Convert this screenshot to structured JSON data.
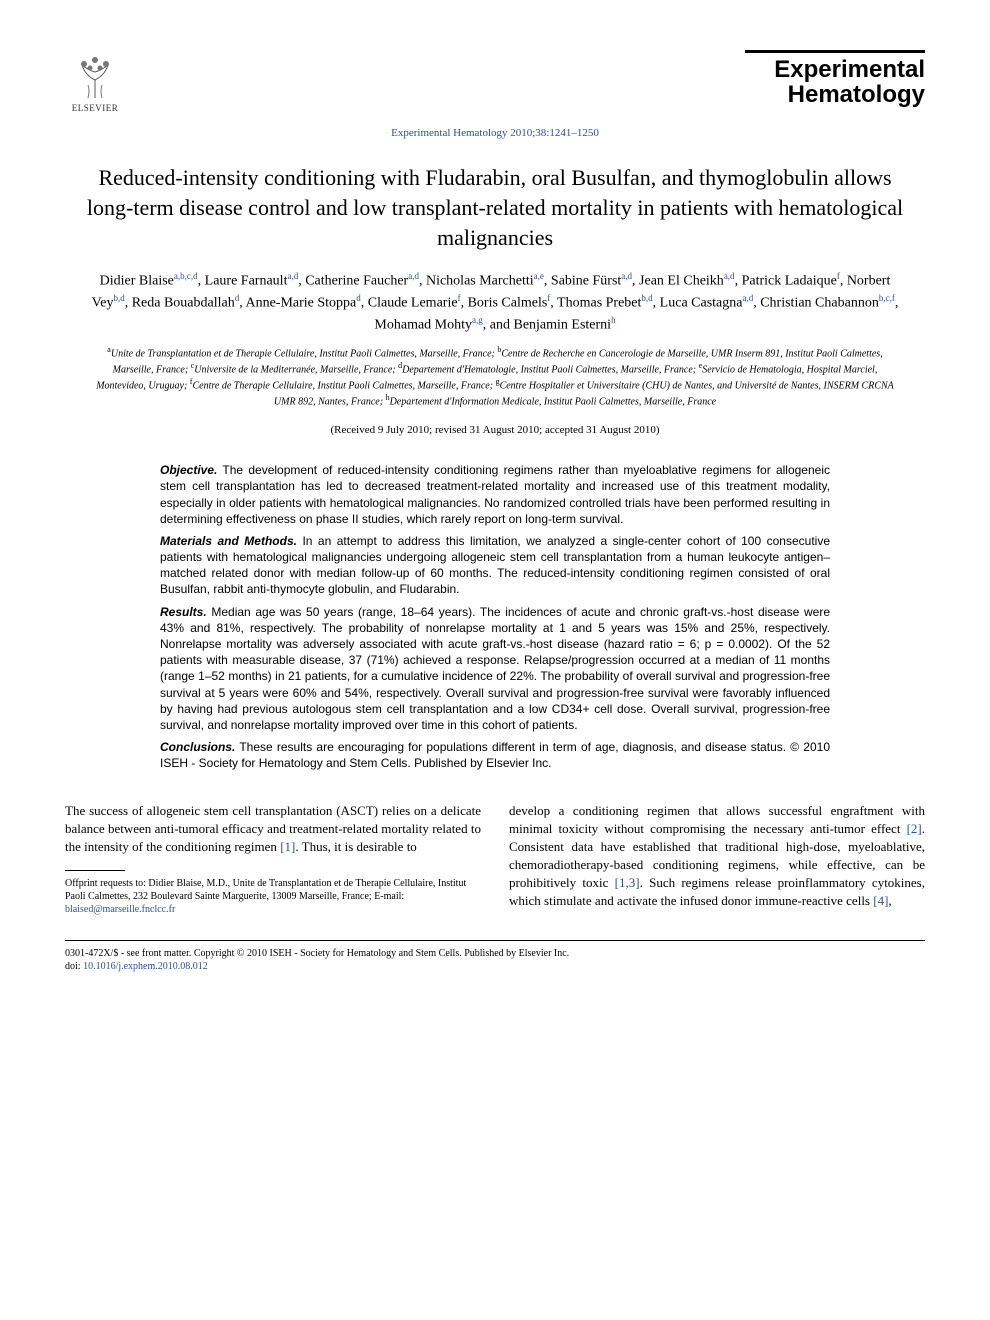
{
  "publisher": {
    "name": "ELSEVIER"
  },
  "journal": {
    "name_line1": "Experimental",
    "name_line2": "Hematology",
    "reference": "Experimental Hematology 2010;38:1241–1250"
  },
  "article": {
    "title": "Reduced-intensity conditioning with Fludarabin, oral Busulfan, and thymoglobulin allows long-term disease control and low transplant-related mortality in patients with hematological malignancies"
  },
  "authors_html": "Didier Blaise<sup>a,b,c,d</sup>, Laure Farnault<sup>a,d</sup>, Catherine Faucher<sup>a,d</sup>, Nicholas Marchetti<sup>a,e</sup>, Sabine Fürst<sup>a,d</sup>, Jean El Cheikh<sup>a,d</sup>, Patrick Ladaique<sup>f</sup>, Norbert Vey<sup>b,d</sup>, Reda Bouabdallah<sup>d</sup>, Anne-Marie Stoppa<sup>d</sup>, Claude Lemarie<sup>f</sup>, Boris Calmels<sup>f</sup>, Thomas Prebet<sup>b,d</sup>, Luca Castagna<sup>a,d</sup>, Christian Chabannon<sup>b,c,f</sup>, Mohamad Mohty<sup>a,g</sup>, and Benjamin Esterni<sup>h</sup>",
  "affiliations_html": "<sup>a</sup>Unite de Transplantation et de Therapie Cellulaire, Institut Paoli Calmettes, Marseille, France; <sup>b</sup>Centre de Recherche en Cancerologie de Marseille, UMR Inserm 891, Institut Paoli Calmettes, Marseille, France; <sup>c</sup>Universite de la Mediterranée, Marseille, France; <sup>d</sup>Departement d'Hematologie, Institut Paoli Calmettes, Marseille, France; <sup>e</sup>Servicio de Hematologia, Hospital Marciel, Montevideo, Uruguay; <sup>f</sup>Centre de Therapie Cellulaire, Institut Paoli Calmettes, Marseille, France; <sup>g</sup>Centre Hospitalier et Universitaire (CHU) de Nantes, and Université de Nantes, INSERM CRCNA UMR 892, Nantes, France; <sup>h</sup>Departement d'Information Medicale, Institut Paoli Calmettes, Marseille, France",
  "dates": "(Received 9 July 2010; revised 31 August 2010; accepted 31 August 2010)",
  "abstract": {
    "objective": {
      "label": "Objective.",
      "text": "The development of reduced-intensity conditioning regimens rather than myeloablative regimens for allogeneic stem cell transplantation has led to decreased treatment-related mortality and increased use of this treatment modality, especially in older patients with hematological malignancies. No randomized controlled trials have been performed resulting in determining effectiveness on phase II studies, which rarely report on long-term survival."
    },
    "methods": {
      "label": "Materials and Methods.",
      "text": "In an attempt to address this limitation, we analyzed a single-center cohort of 100 consecutive patients with hematological malignancies undergoing allogeneic stem cell transplantation from a human leukocyte antigen–matched related donor with median follow-up of 60 months. The reduced-intensity conditioning regimen consisted of oral Busulfan, rabbit anti-thymocyte globulin, and Fludarabin."
    },
    "results": {
      "label": "Results.",
      "text": "Median age was 50 years (range, 18–64 years). The incidences of acute and chronic graft-vs.-host disease were 43% and 81%, respectively. The probability of nonrelapse mortality at 1 and 5 years was 15% and 25%, respectively. Nonrelapse mortality was adversely associated with acute graft-vs.-host disease (hazard ratio = 6; p = 0.0002). Of the 52 patients with measurable disease, 37 (71%) achieved a response. Relapse/progression occurred at a median of 11 months (range 1–52 months) in 21 patients, for a cumulative incidence of 22%. The probability of overall survival and progression-free survival at 5 years were 60% and 54%, respectively. Overall survival and progression-free survival were favorably influenced by having had previous autologous stem cell transplantation and a low CD34+ cell dose. Overall survival, progression-free survival, and nonrelapse mortality improved over time in this cohort of patients."
    },
    "conclusions": {
      "label": "Conclusions.",
      "text": "These results are encouraging for populations different in term of age, diagnosis, and disease status.  © 2010 ISEH - Society for Hematology and Stem Cells.  Published by Elsevier Inc."
    }
  },
  "body": {
    "col1_html": "The success of allogeneic stem cell transplantation (ASCT) relies on a delicate balance between anti-tumoral efficacy and treatment-related mortality related to the intensity of the conditioning regimen <span class=\"ref-link\">[1]</span>. Thus, it is desirable to",
    "col2_html": "develop a conditioning regimen that allows successful engraftment with minimal toxicity without compromising the necessary anti-tumor effect <span class=\"ref-link\">[2]</span>. Consistent data have established that traditional high-dose, myeloablative, chemoradiotherapy-based conditioning regimens, while effective, can be prohibitively toxic <span class=\"ref-link\">[1,3]</span>. Such regimens release proinflammatory cytokines, which stimulate and activate the infused donor immune-reactive cells <span class=\"ref-link\">[4]</span>,"
  },
  "footnote": {
    "text_html": "Offprint requests to: Didier Blaise, M.D., Unite de Transplantation et de Therapie Cellulaire, Institut Paoli Calmettes, 232 Boulevard Sainte Marguerite, 13009 Marseille, France; E-mail: <span class=\"email\">blaised@marseille.fnclcc.fr</span>"
  },
  "copyright": {
    "line1": "0301-472X/$ - see front matter. Copyright © 2010 ISEH - Society for Hematology and Stem Cells. Published by Elsevier Inc.",
    "doi_label": "doi: ",
    "doi": "10.1016/j.exphem.2010.08.012"
  },
  "colors": {
    "link": "#2a4ea0",
    "text": "#000000",
    "background": "#ffffff"
  }
}
